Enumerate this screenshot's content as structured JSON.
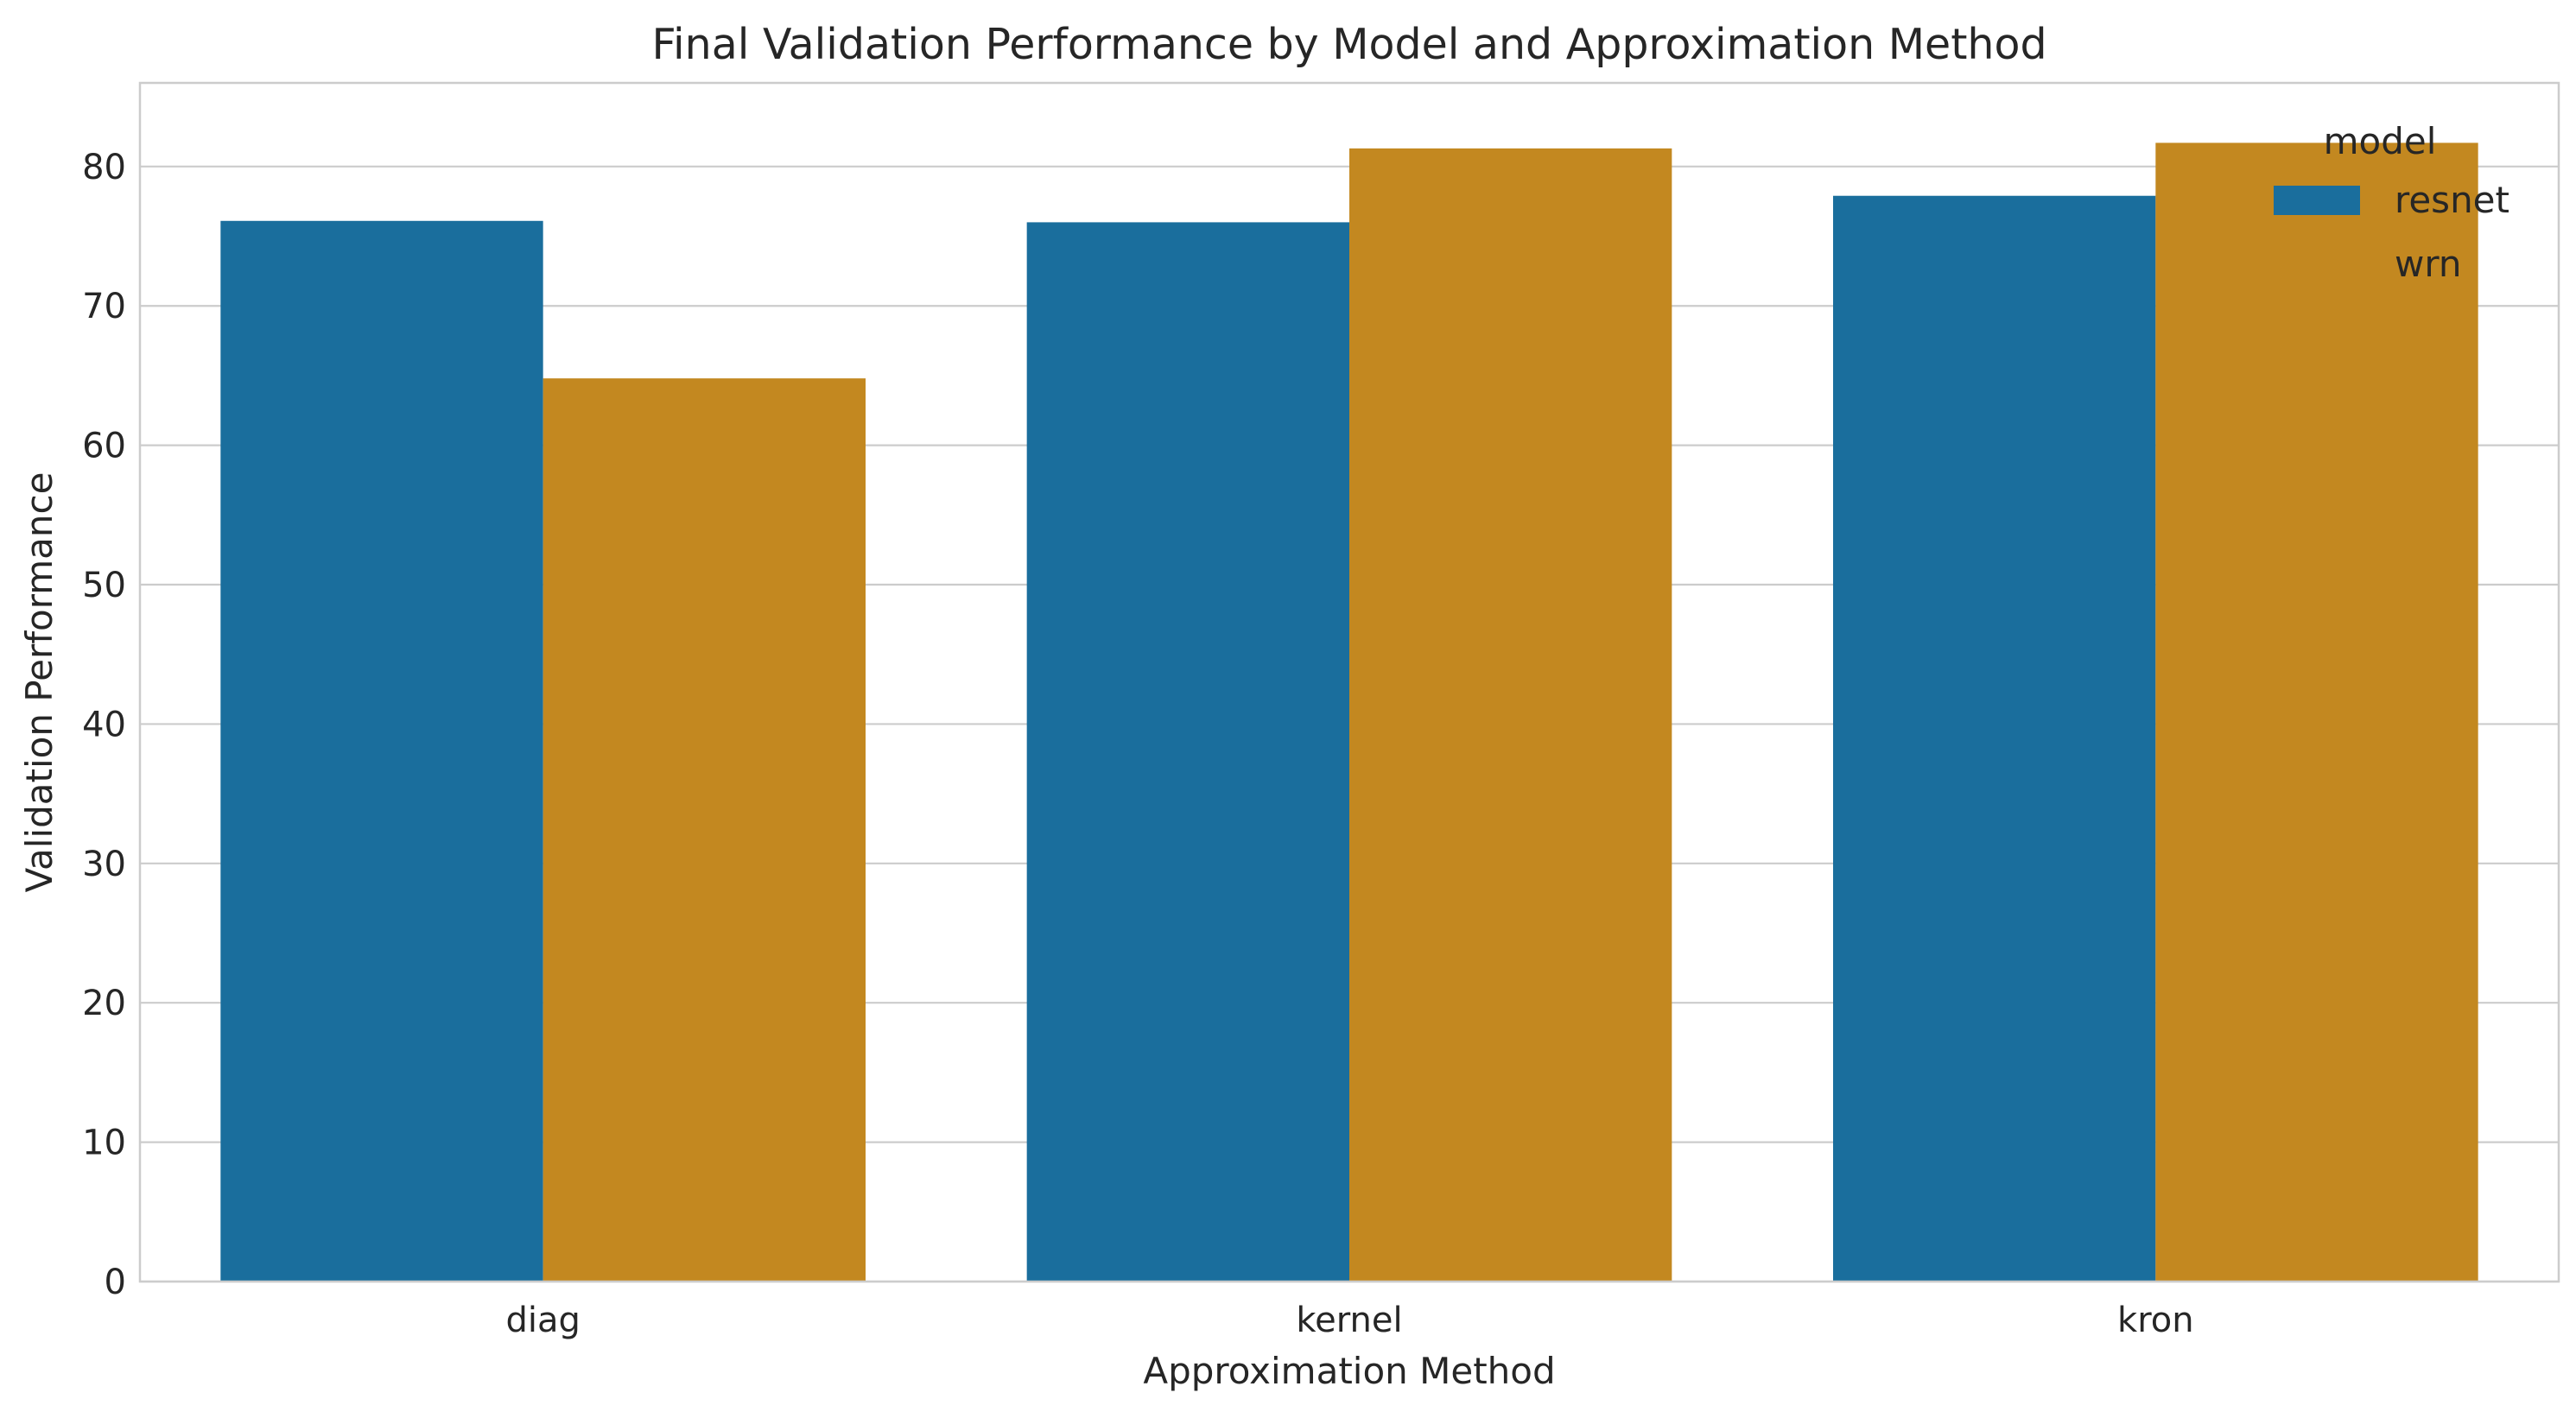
{
  "chart_data": {
    "type": "bar",
    "title": "Final Validation Performance by Model and Approximation Method",
    "xlabel": "Approximation Method",
    "ylabel": "Validation Performance",
    "categories": [
      "diag",
      "kernel",
      "kron"
    ],
    "series": [
      {
        "name": "resnet",
        "color": "#1a6e9d",
        "values": [
          76.1,
          76.0,
          77.9
        ]
      },
      {
        "name": "wrn",
        "color": "#c38820",
        "values": [
          64.8,
          81.3,
          81.7
        ]
      }
    ],
    "ylim": [
      0,
      86
    ],
    "yticks": [
      0,
      10,
      20,
      30,
      40,
      50,
      60,
      70,
      80
    ],
    "grid": true,
    "legend": {
      "title": "model",
      "placement": "top-right"
    }
  },
  "colors": {
    "grid": "#cccccc",
    "frame": "#cccccc",
    "text": "#262626"
  }
}
